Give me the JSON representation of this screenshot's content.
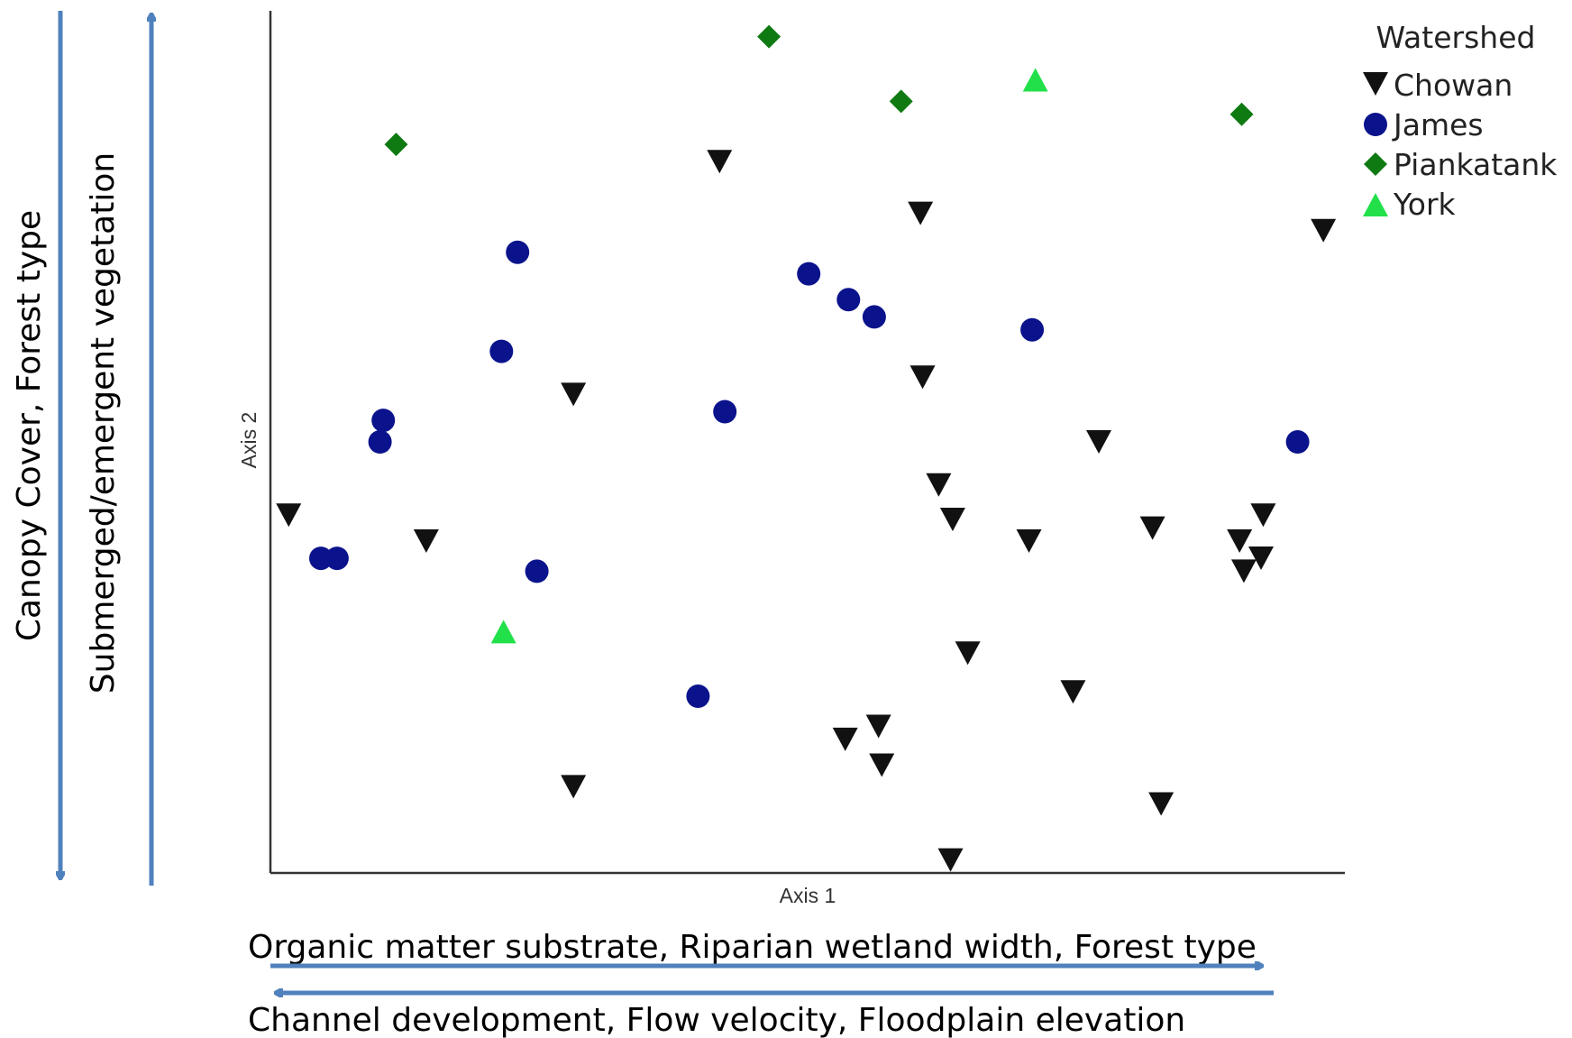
{
  "colors": {
    "chowan": "#111111",
    "james": "#0b138c",
    "piankatank": "#0f7a12",
    "york": "#22e04a",
    "arrow": "#4f81bd",
    "axis": "#333333"
  },
  "chart_data": {
    "type": "scatter",
    "title": "",
    "xlabel": "Axis 1",
    "ylabel": "Axis 2",
    "xlim": [
      0,
      100
    ],
    "ylim": [
      0,
      100
    ],
    "grid": false,
    "legend": {
      "title": "Watershed",
      "placement": "top-right"
    },
    "series": [
      {
        "name": "Chowan",
        "marker": "triangle-down",
        "points": [
          [
            1.7,
            41.5
          ],
          [
            14.5,
            38.5
          ],
          [
            28.2,
            55.5
          ],
          [
            28.2,
            10.0
          ],
          [
            41.8,
            82.5
          ],
          [
            53.5,
            15.5
          ],
          [
            56.6,
            17.0
          ],
          [
            56.9,
            12.5
          ],
          [
            60.5,
            76.5
          ],
          [
            60.7,
            57.5
          ],
          [
            62.2,
            45.0
          ],
          [
            63.5,
            41.0
          ],
          [
            64.9,
            25.5
          ],
          [
            63.3,
            1.5
          ],
          [
            70.6,
            38.5
          ],
          [
            74.7,
            21.0
          ],
          [
            77.1,
            50.0
          ],
          [
            82.1,
            40.0
          ],
          [
            82.9,
            8.0
          ],
          [
            90.2,
            38.5
          ],
          [
            92.4,
            41.5
          ],
          [
            90.6,
            35.0
          ],
          [
            92.2,
            36.5
          ],
          [
            98.0,
            74.5
          ]
        ]
      },
      {
        "name": "James",
        "marker": "circle",
        "points": [
          [
            4.7,
            36.5
          ],
          [
            6.2,
            36.5
          ],
          [
            10.2,
            50.0
          ],
          [
            10.5,
            52.5
          ],
          [
            21.5,
            60.5
          ],
          [
            23.0,
            72.0
          ],
          [
            24.8,
            35.0
          ],
          [
            39.8,
            20.5
          ],
          [
            42.3,
            53.5
          ],
          [
            50.1,
            69.5
          ],
          [
            53.8,
            66.5
          ],
          [
            56.2,
            64.5
          ],
          [
            70.9,
            63.0
          ],
          [
            95.6,
            50.0
          ]
        ]
      },
      {
        "name": "Piankatank",
        "marker": "diamond",
        "points": [
          [
            11.7,
            84.5
          ],
          [
            46.4,
            97.0
          ],
          [
            58.7,
            89.5
          ],
          [
            90.4,
            88.0
          ]
        ]
      },
      {
        "name": "York",
        "marker": "triangle-up",
        "points": [
          [
            21.7,
            28.0
          ],
          [
            71.2,
            92.0
          ]
        ]
      }
    ]
  },
  "interpretation": {
    "x_positive": "Organic matter substrate, Riparian wetland width, Forest type",
    "x_negative": "Channel development, Flow velocity, Floodplain elevation",
    "y_outer": "Canopy Cover, Forest type",
    "y_inner": "Submerged/emergent vegetation"
  }
}
